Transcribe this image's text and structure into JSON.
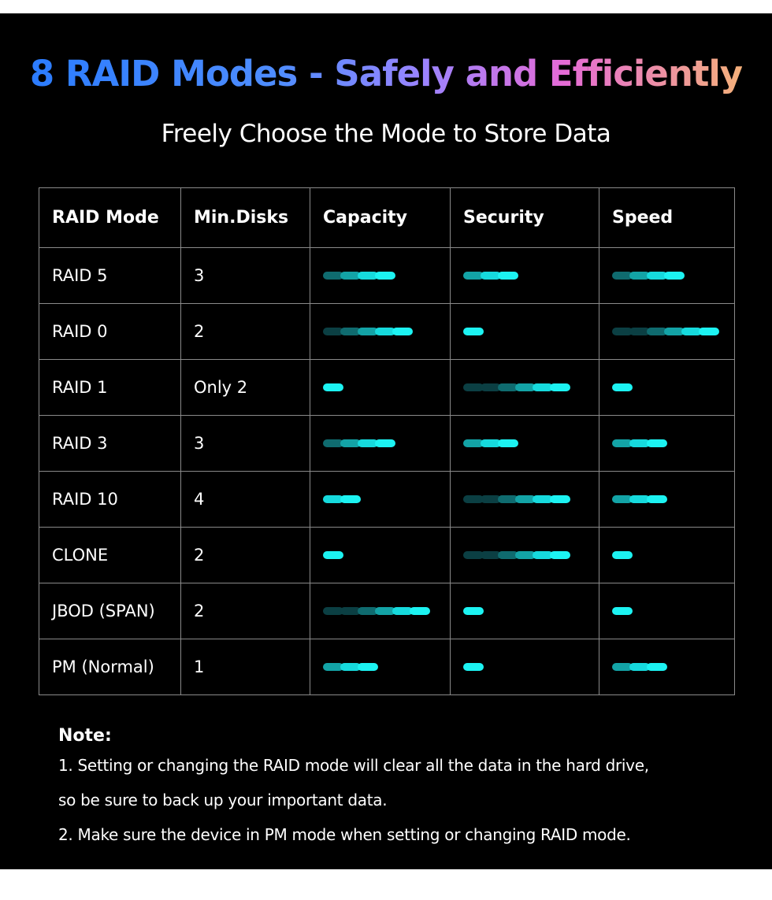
{
  "header": {
    "title": "8 RAID Modes - Safely and Efficiently",
    "subtitle": "Freely Choose the Mode to Store Data"
  },
  "table": {
    "columns": [
      "RAID Mode",
      "Min.Disks",
      "Capacity",
      "Security",
      "Speed"
    ],
    "rows": [
      {
        "mode": "RAID 5",
        "min_disks": "3",
        "capacity": 4,
        "security": 3,
        "speed": 4
      },
      {
        "mode": "RAID 0",
        "min_disks": "2",
        "capacity": 5,
        "security": 1,
        "speed": 6
      },
      {
        "mode": "RAID 1",
        "min_disks": "Only 2",
        "capacity": 1,
        "security": 6,
        "speed": 1
      },
      {
        "mode": "RAID 3",
        "min_disks": "3",
        "capacity": 4,
        "security": 3,
        "speed": 3
      },
      {
        "mode": "RAID 10",
        "min_disks": "4",
        "capacity": 2,
        "security": 6,
        "speed": 3
      },
      {
        "mode": "CLONE",
        "min_disks": "2",
        "capacity": 1,
        "security": 6,
        "speed": 1
      },
      {
        "mode": "JBOD (SPAN)",
        "min_disks": "2",
        "capacity": 6,
        "security": 1,
        "speed": 1
      },
      {
        "mode": "PM (Normal)",
        "min_disks": "1",
        "capacity": 3,
        "security": 1,
        "speed": 3
      }
    ],
    "bar_colors": [
      "#0b3f43",
      "#0f6b6f",
      "#13a3a6",
      "#16dadd",
      "#1cf3f2"
    ]
  },
  "notes": {
    "title": "Note:",
    "line1a": "1. Setting or changing the RAID mode will clear all the data in the hard drive,",
    "line1b": "so be sure to back up your important data.",
    "line2": "2. Make sure the device in PM mode when setting or changing RAID mode."
  }
}
